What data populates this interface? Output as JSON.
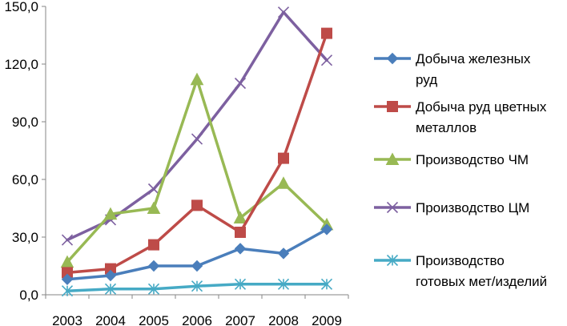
{
  "chart_data": {
    "type": "line",
    "title": "",
    "xlabel": "",
    "ylabel": "",
    "categories": [
      "2003",
      "2004",
      "2005",
      "2006",
      "2007",
      "2008",
      "2009"
    ],
    "ylim": [
      0,
      150
    ],
    "yticks": [
      "0,0",
      "30,0",
      "60,0",
      "90,0",
      "120,0",
      "150,0"
    ],
    "grid": false,
    "legend_position": "right",
    "series": [
      {
        "name": "Добыча железных руд",
        "label_lines": [
          "Добыча железных",
          "руд"
        ],
        "color": "#4a7ebb",
        "marker": "diamond",
        "values": [
          8,
          10,
          15,
          15,
          24,
          21.5,
          34
        ]
      },
      {
        "name": "Добыча руд цветных металлов",
        "label_lines": [
          "Добыча руд цветных",
          "металлов"
        ],
        "color": "#be4b48",
        "marker": "square",
        "values": [
          11.5,
          13.5,
          26,
          46.5,
          32.5,
          71,
          136
        ]
      },
      {
        "name": "Производство ЧМ",
        "label_lines": [
          "Производство ЧМ"
        ],
        "color": "#98b954",
        "marker": "triangle",
        "values": [
          17,
          42,
          45,
          112,
          40,
          58,
          36.5
        ]
      },
      {
        "name": "Производство ЦМ",
        "label_lines": [
          "Производство ЦМ"
        ],
        "color": "#7d60a0",
        "marker": "x",
        "values": [
          28.5,
          39,
          55,
          81,
          110,
          147,
          122
        ]
      },
      {
        "name": "Производство готовых мет/изделий",
        "label_lines": [
          "Производство",
          "готовых мет/изделий"
        ],
        "color": "#46aac5",
        "marker": "star",
        "values": [
          2,
          3,
          3,
          4.5,
          5.5,
          5.5,
          5.5
        ]
      }
    ]
  }
}
